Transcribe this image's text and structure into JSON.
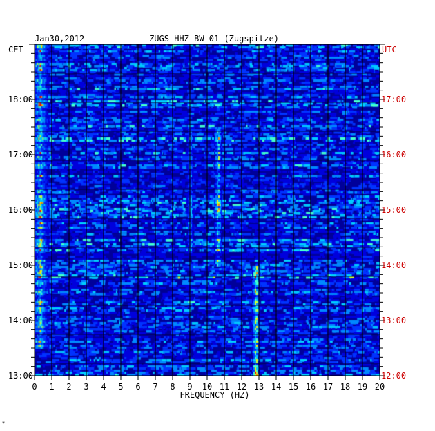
{
  "chart_data": {
    "type": "heatmap",
    "date": "Jan30,2012",
    "title": "ZUGS HHZ BW 01 (Zugspitze)",
    "left_label": "CET",
    "right_label": "UTC",
    "xlabel": "FREQUENCY (HZ)",
    "x_ticks": [
      "0",
      "1",
      "2",
      "3",
      "4",
      "5",
      "6",
      "7",
      "8",
      "9",
      "10",
      "11",
      "12",
      "13",
      "14",
      "15",
      "16",
      "17",
      "18",
      "19",
      "20"
    ],
    "xlim": [
      0,
      20
    ],
    "left_time_ticks": [
      "13:00",
      "14:00",
      "15:00",
      "16:00",
      "17:00",
      "18:00"
    ],
    "right_time_ticks": [
      "12:00",
      "13:00",
      "14:00",
      "15:00",
      "16:00",
      "17:00"
    ],
    "time_range_cet": [
      "13:00",
      "19:00"
    ],
    "grid": true,
    "colors": {
      "background": "#000099",
      "low": "#0000cc",
      "mid": "#00aaff",
      "high": "#ffff00",
      "peak": "#ff0000",
      "left_label_color": "#000000",
      "right_label_color": "#cc0000"
    },
    "spectral_bands": [
      {
        "freq_hz": 0.3,
        "from": "13:30",
        "to": "19:00",
        "strength": "high"
      },
      {
        "freq_hz": 9.0,
        "from": "15:10",
        "to": "17:30",
        "strength": "medium"
      },
      {
        "freq_hz": 10.6,
        "from": "15:00",
        "to": "17:30",
        "strength": "high"
      },
      {
        "freq_hz": 12.8,
        "from": "13:00",
        "to": "15:00",
        "strength": "very high"
      }
    ]
  },
  "footer_mark": "*"
}
